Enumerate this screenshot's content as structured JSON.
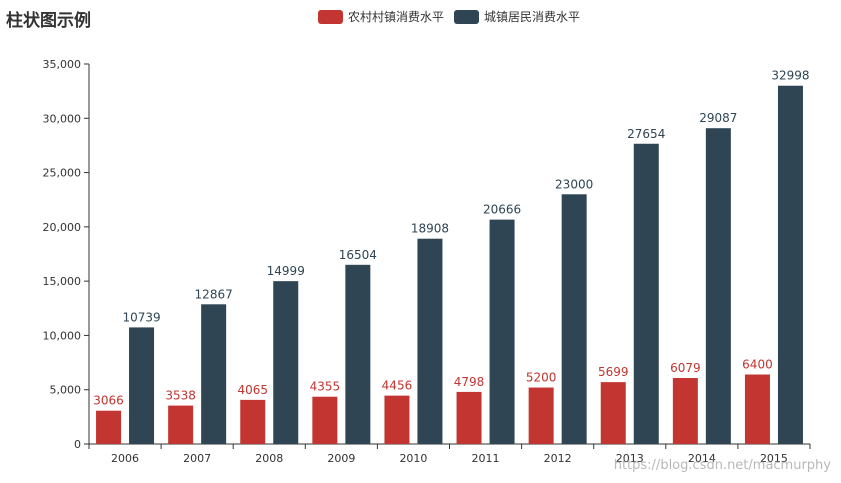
{
  "chart_data": {
    "type": "bar",
    "title": "柱状图示例",
    "categories": [
      "2006",
      "2007",
      "2008",
      "2009",
      "2010",
      "2011",
      "2012",
      "2013",
      "2014",
      "2015"
    ],
    "series": [
      {
        "name": "农村村镇消费水平",
        "color": "#c23531",
        "values": [
          3066,
          3538,
          4065,
          4355,
          4456,
          4798,
          5200,
          5699,
          6079,
          6400
        ]
      },
      {
        "name": "城镇居民消费水平",
        "color": "#2f4554",
        "values": [
          10739,
          12867,
          14999,
          16504,
          18908,
          20666,
          23000,
          27654,
          29087,
          32998
        ]
      }
    ],
    "ylim": [
      0,
      35000
    ],
    "yticks": [
      0,
      5000,
      10000,
      15000,
      20000,
      25000,
      30000,
      35000
    ],
    "ytick_labels": [
      "0",
      "5,000",
      "10,000",
      "15,000",
      "20,000",
      "25,000",
      "30,000",
      "35,000"
    ],
    "legend_position": "top-center",
    "grid": false
  },
  "watermark": "https://blog.csdn.net/macmurphy"
}
